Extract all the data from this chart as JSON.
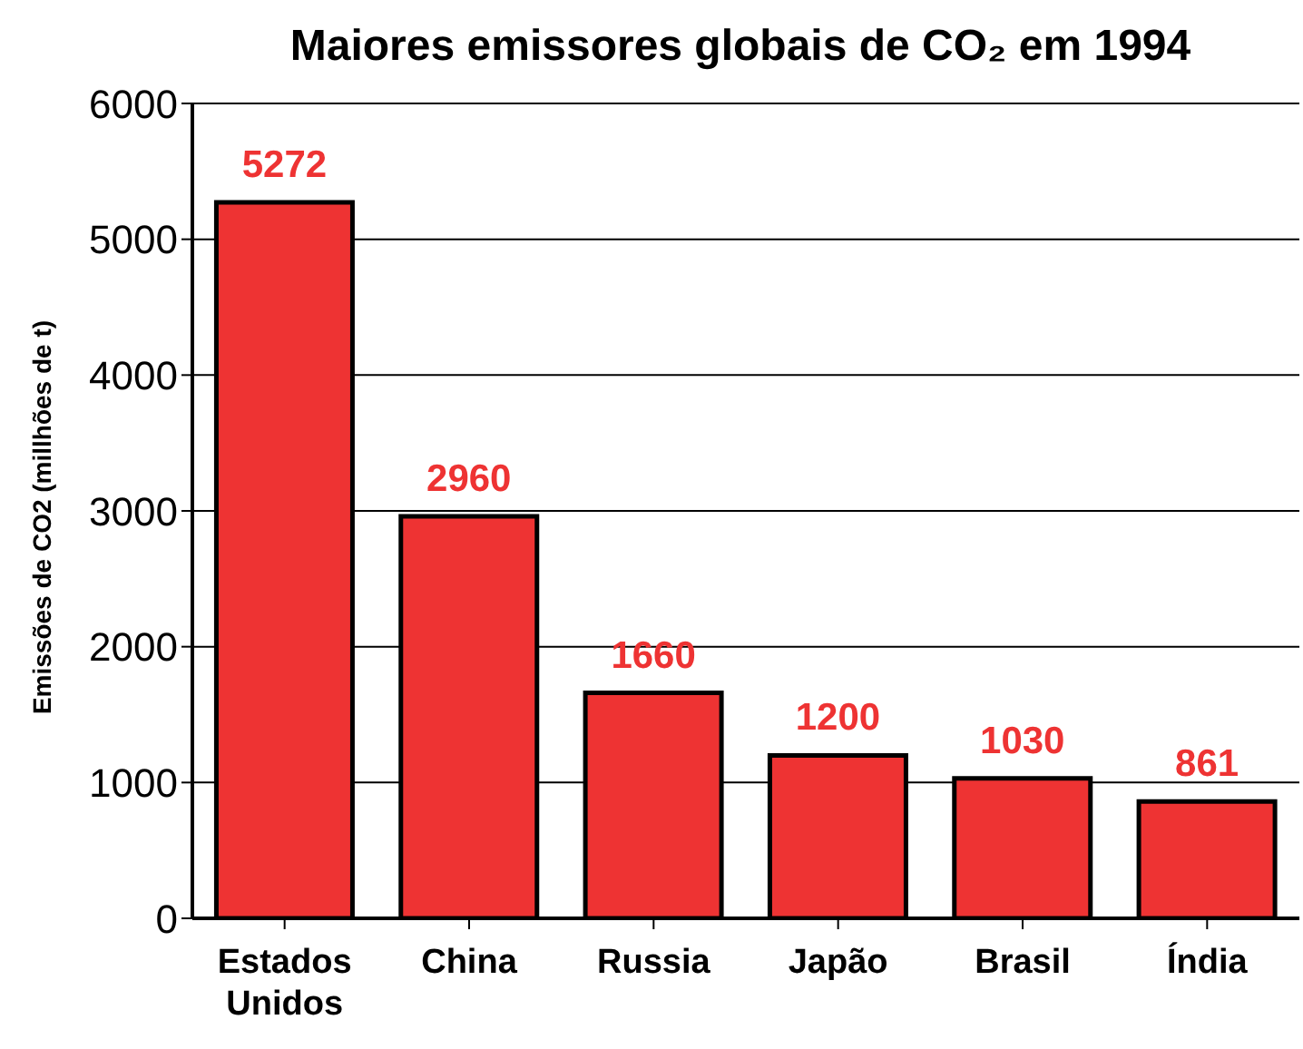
{
  "chart_data": {
    "type": "bar",
    "title": "Maiores emissores globais de CO₂ em 1994",
    "ylabel": "Emissões de CO2 (millhões de t)",
    "categories": [
      "Estados Unidos",
      "China",
      "Russia",
      "Japão",
      "Brasil",
      "Índia"
    ],
    "values": [
      5272,
      2960,
      1660,
      1200,
      1030,
      861
    ],
    "color": "#ee3333",
    "data_labels": true,
    "ylim": [
      0,
      6000
    ],
    "yticks": [
      0,
      1000,
      2000,
      3000,
      4000,
      5000,
      6000
    ],
    "grid": "y"
  }
}
